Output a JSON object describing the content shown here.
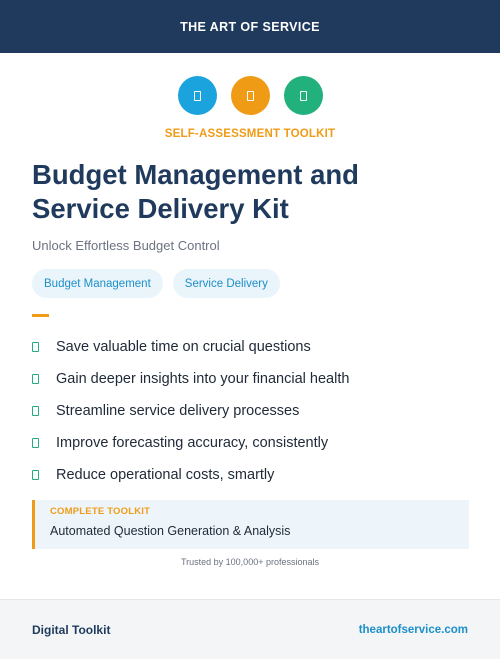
{
  "header": {
    "brand": "THE ART OF SERVICE"
  },
  "icons": [
    "document-icon",
    "document-icon",
    "document-icon"
  ],
  "kicker": "SELF-ASSESSMENT TOOLKIT",
  "title": {
    "line1": "Budget Management and",
    "line2": "Service Delivery Kit"
  },
  "subtitle": "Unlock Effortless Budget Control",
  "tags": [
    "Budget Management",
    "Service Delivery"
  ],
  "features": [
    "Save valuable time on crucial questions",
    "Gain deeper insights into your financial health",
    "Streamline service delivery processes",
    "Improve forecasting accuracy, consistently",
    "Reduce operational costs, smartly"
  ],
  "callout": {
    "kicker": "COMPLETE TOOLKIT",
    "text": "Automated Question Generation & Analysis"
  },
  "trusted": "Trusted by 100,000+ professionals",
  "footer": {
    "left": "Digital Toolkit",
    "right": "theartofservice.com"
  },
  "colors": {
    "navy": "#1f3a5c",
    "orange": "#f09b16",
    "blue": "#1ba3dd",
    "green": "#22b07d"
  }
}
